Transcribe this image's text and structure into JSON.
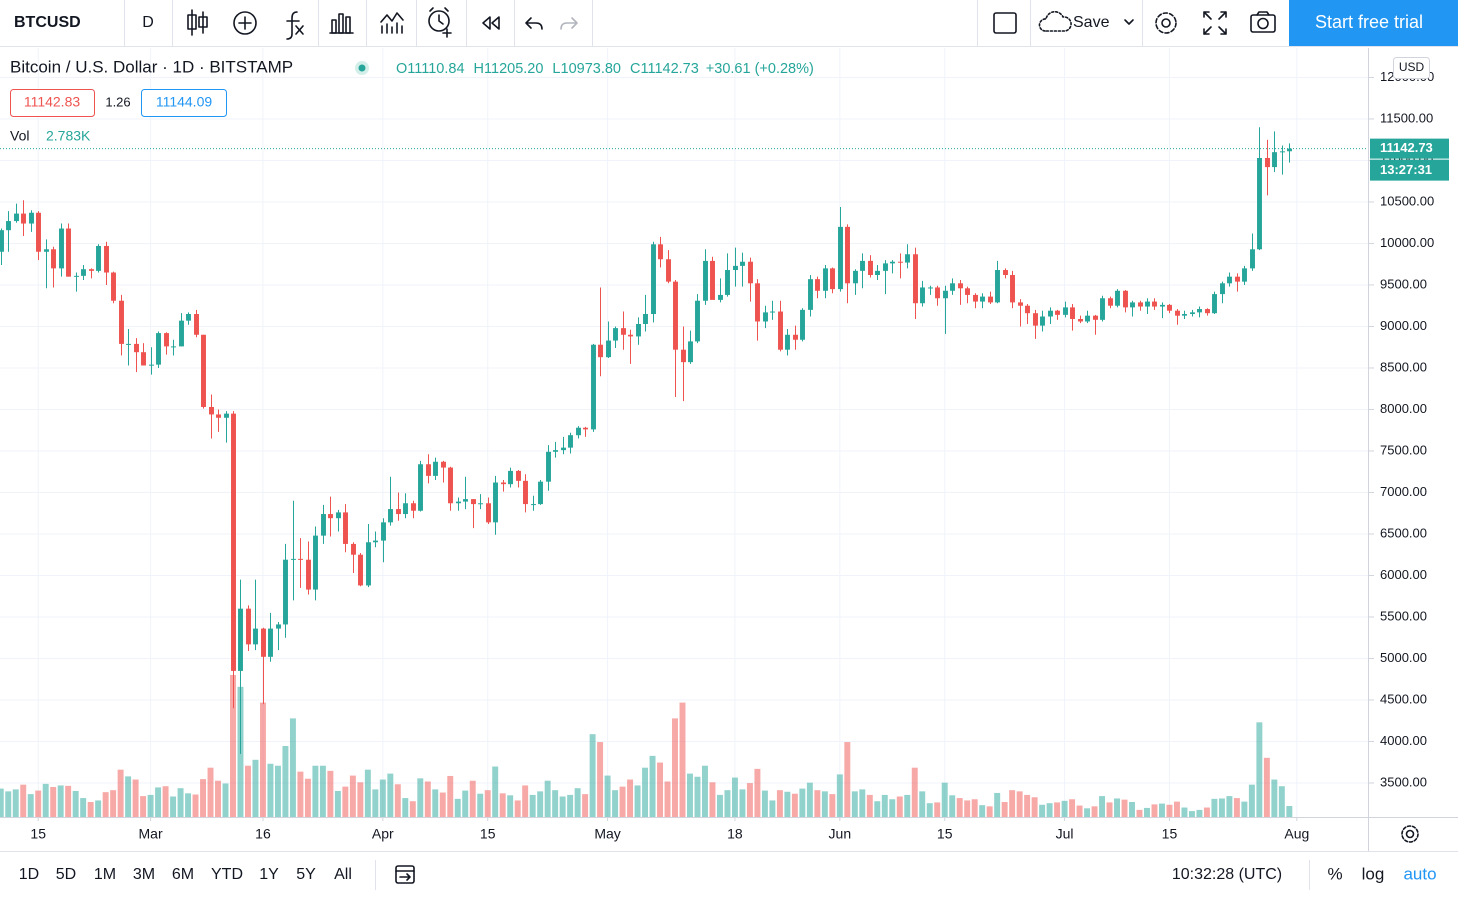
{
  "toolbar": {
    "symbol": "BTCUSD",
    "interval": "D",
    "save": "Save",
    "trial": "Start free trial"
  },
  "legend": {
    "symbol_name": "Bitcoin / U.S. Dollar · 1D · BITSTAMP",
    "ohlc": [
      {
        "label": "O",
        "value": "11110.84"
      },
      {
        "label": "H",
        "value": "11205.20"
      },
      {
        "label": "L",
        "value": "10973.80"
      },
      {
        "label": "C",
        "value": "11142.73"
      }
    ],
    "change": "+30.61 (+0.28%)",
    "bid": "11142.83",
    "spread": "1.26",
    "ask": "11144.09",
    "volume_name": "Vol",
    "volume_value": "2.783K"
  },
  "chart_data": {
    "type": "candlestick",
    "up_color": "#26a69a",
    "down_color": "#ef5350",
    "grid": true,
    "currency": "USD",
    "last_price": 11142.73,
    "countdown": "13:27:31",
    "xlim": [
      -0.1,
      182.5
    ],
    "xticks": [
      {
        "value": 5,
        "label": "15"
      },
      {
        "value": 20,
        "label": "Mar"
      },
      {
        "value": 35,
        "label": "16"
      },
      {
        "value": 51,
        "label": "Apr"
      },
      {
        "value": 65,
        "label": "15"
      },
      {
        "value": 81,
        "label": "May"
      },
      {
        "value": 98,
        "label": "18"
      },
      {
        "value": 112,
        "label": "Jun"
      },
      {
        "value": 126,
        "label": "15"
      },
      {
        "value": 142,
        "label": "Jul"
      },
      {
        "value": 156,
        "label": "15"
      },
      {
        "value": 173,
        "label": "Aug"
      }
    ],
    "ylim": [
      3090,
      12355
    ],
    "yticks": [
      {
        "value": 3500,
        "label": "3500.00"
      },
      {
        "value": 4000,
        "label": "4000.00"
      },
      {
        "value": 4500,
        "label": "4500.00"
      },
      {
        "value": 5000,
        "label": "5000.00"
      },
      {
        "value": 5500,
        "label": "5500.00"
      },
      {
        "value": 6000,
        "label": "6000.00"
      },
      {
        "value": 6500,
        "label": "6500.00"
      },
      {
        "value": 7000,
        "label": "7000.00"
      },
      {
        "value": 7500,
        "label": "7500.00"
      },
      {
        "value": 8000,
        "label": "8000.00"
      },
      {
        "value": 8500,
        "label": "8500.00"
      },
      {
        "value": 9000,
        "label": "9000.00"
      },
      {
        "value": 9500,
        "label": "9500.00"
      },
      {
        "value": 10000,
        "label": "10000.00"
      },
      {
        "value": 10500,
        "label": "10500.00"
      },
      {
        "value": 11000,
        "label": "11000.00"
      },
      {
        "value": 11500,
        "label": "11500.00"
      },
      {
        "value": 12000,
        "label": "12000.00"
      }
    ],
    "open": [
      9900,
      10160,
      10270,
      10360,
      10240,
      10370,
      9900,
      9930,
      9700,
      10180,
      9600,
      9610,
      9690,
      9670,
      9970,
      9650,
      9310,
      8790,
      8790,
      8690,
      8530,
      8540,
      8920,
      8760,
      8760,
      9070,
      9150,
      8900,
      8030,
      7940,
      7900,
      7950,
      4850,
      5600,
      5170,
      5360,
      5020,
      5360,
      5410,
      6190,
      6200,
      6190,
      5830,
      6480,
      6740,
      6690,
      6760,
      6380,
      6250,
      5880,
      6400,
      6420,
      6640,
      6800,
      6740,
      6870,
      6780,
      7340,
      7200,
      7370,
      7300,
      6870,
      6890,
      6920,
      6860,
      6870,
      6640,
      7120,
      7100,
      7260,
      7140,
      6860,
      6860,
      7130,
      7490,
      7510,
      7540,
      7690,
      7780,
      7760,
      8780,
      8630,
      8830,
      8980,
      8900,
      8880,
      9030,
      9150,
      9990,
      9810,
      9540,
      8720,
      8570,
      8820,
      9310,
      9790,
      9320,
      9380,
      9680,
      9730,
      9780,
      9520,
      9060,
      9170,
      9180,
      8720,
      8900,
      8840,
      9200,
      9570,
      9430,
      9700,
      9450,
      10200,
      9520,
      9670,
      9790,
      9620,
      9670,
      9760,
      9780,
      9770,
      9870,
      9280,
      9470,
      9470,
      9340,
      9430,
      9520,
      9460,
      9380,
      9300,
      9360,
      9290,
      9680,
      9620,
      9290,
      9250,
      9160,
      9010,
      9120,
      9190,
      9140,
      9230,
      9090,
      9060,
      9130,
      9080,
      9340,
      9250,
      9430,
      9230,
      9290,
      9240,
      9300,
      9240,
      9260,
      9190,
      9130,
      9150,
      9170,
      9210,
      9160,
      9390,
      9520,
      9600,
      9540,
      9700,
      9930,
      11030,
      10920,
      11100,
      11110.84
    ],
    "high": [
      10180,
      10390,
      10480,
      10520,
      10400,
      10390,
      10050,
      9960,
      10240,
      10240,
      9650,
      9740,
      9700,
      9990,
      10020,
      9660,
      9380,
      8970,
      8860,
      8800,
      8750,
      8940,
      8930,
      8840,
      9160,
      9170,
      9200,
      8900,
      8180,
      8000,
      7980,
      7980,
      5950,
      5640,
      5950,
      5370,
      5550,
      5440,
      6380,
      6900,
      6450,
      6410,
      6590,
      6850,
      6950,
      6790,
      6860,
      6400,
      6270,
      6620,
      6530,
      6690,
      7190,
      7000,
      6990,
      6900,
      7380,
      7460,
      7420,
      7380,
      7310,
      6940,
      7190,
      6920,
      6980,
      6940,
      7200,
      7150,
      7300,
      7270,
      7220,
      6960,
      7150,
      7570,
      7610,
      7670,
      7720,
      7800,
      7790,
      8790,
      9470,
      9060,
      9000,
      9180,
      8960,
      9110,
      9380,
      10020,
      10080,
      9920,
      9560,
      9000,
      8950,
      9390,
      9930,
      9840,
      9580,
      9880,
      9950,
      9890,
      9830,
      9570,
      9250,
      9310,
      9310,
      8970,
      9010,
      9220,
      9620,
      9600,
      9740,
      9710,
      10440,
      10230,
      9690,
      9880,
      9860,
      9740,
      9800,
      9800,
      9880,
      9990,
      9950,
      9550,
      9490,
      9490,
      9490,
      9580,
      9560,
      9480,
      9400,
      9400,
      9420,
      9790,
      9700,
      9670,
      9330,
      9270,
      9200,
      9190,
      9230,
      9200,
      9300,
      9270,
      9130,
      9190,
      9140,
      9370,
      9360,
      9450,
      9440,
      9310,
      9310,
      9340,
      9340,
      9290,
      9270,
      9210,
      9190,
      9200,
      9240,
      9220,
      9420,
      9540,
      9650,
      9640,
      9730,
      10120,
      11400,
      11250,
      11350,
      11180,
      11205.2
    ],
    "low": [
      9740,
      9900,
      10250,
      10090,
      10140,
      9800,
      9460,
      9470,
      9600,
      9600,
      9420,
      9560,
      9580,
      9650,
      9500,
      9280,
      8650,
      8530,
      8450,
      8530,
      8420,
      8500,
      8660,
      8650,
      8760,
      9020,
      8870,
      8010,
      7650,
      7730,
      7600,
      4400,
      3850,
      5090,
      5100,
      4450,
      4960,
      5100,
      5250,
      5700,
      5850,
      5770,
      5700,
      6380,
      6470,
      6530,
      6280,
      6030,
      5870,
      5860,
      6340,
      6160,
      6600,
      6660,
      6690,
      6690,
      6770,
      7110,
      7150,
      7120,
      6780,
      6780,
      6800,
      6570,
      6800,
      6620,
      6490,
      7010,
      7060,
      7060,
      6760,
      6780,
      6850,
      7020,
      7420,
      7460,
      7470,
      7650,
      7670,
      7730,
      8400,
      8620,
      8740,
      8720,
      8550,
      8780,
      8940,
      9050,
      9710,
      9520,
      8150,
      8100,
      8550,
      8800,
      9260,
      9340,
      9290,
      9360,
      9480,
      9480,
      9300,
      8830,
      8980,
      9080,
      8700,
      8650,
      8720,
      8820,
      9120,
      9340,
      9340,
      9400,
      9420,
      9280,
      9380,
      9460,
      9590,
      9560,
      9390,
      9640,
      9580,
      9700,
      9090,
      9240,
      9380,
      9250,
      8910,
      9380,
      9260,
      9280,
      9220,
      9220,
      9270,
      9280,
      9580,
      9220,
      9000,
      9030,
      8850,
      8940,
      9030,
      9080,
      9110,
      8950,
      9040,
      9040,
      8900,
      9060,
      9220,
      9230,
      9170,
      9120,
      9190,
      9150,
      9200,
      9100,
      9160,
      9020,
      9090,
      9120,
      9110,
      9130,
      9150,
      9280,
      9480,
      9420,
      9500,
      9670,
      9920,
      10580,
      10860,
      10830,
      10973.8
    ],
    "close": [
      10160,
      10270,
      10360,
      10240,
      10370,
      9900,
      9930,
      9700,
      10180,
      9600,
      9610,
      9690,
      9670,
      9970,
      9650,
      9310,
      8790,
      8790,
      8690,
      8530,
      8540,
      8920,
      8760,
      8760,
      9070,
      9150,
      8900,
      8030,
      7940,
      7900,
      7950,
      4850,
      5600,
      5170,
      5360,
      5020,
      5360,
      5410,
      6190,
      6200,
      6190,
      5830,
      6480,
      6740,
      6690,
      6760,
      6380,
      6250,
      5880,
      6400,
      6420,
      6640,
      6800,
      6740,
      6870,
      6780,
      7340,
      7200,
      7370,
      7300,
      6870,
      6890,
      6920,
      6860,
      6870,
      6640,
      7120,
      7100,
      7260,
      7140,
      6860,
      6860,
      7130,
      7490,
      7510,
      7540,
      7690,
      7780,
      7760,
      8780,
      8630,
      8830,
      8980,
      8900,
      8880,
      9030,
      9150,
      9990,
      9810,
      9540,
      8720,
      8570,
      8820,
      9310,
      9790,
      9320,
      9380,
      9680,
      9730,
      9780,
      9520,
      9060,
      9170,
      9180,
      8720,
      8900,
      8840,
      9200,
      9570,
      9430,
      9700,
      9450,
      10200,
      9520,
      9670,
      9790,
      9620,
      9670,
      9760,
      9780,
      9770,
      9870,
      9280,
      9470,
      9470,
      9340,
      9430,
      9520,
      9460,
      9380,
      9300,
      9360,
      9290,
      9680,
      9620,
      9290,
      9250,
      9160,
      9010,
      9120,
      9190,
      9140,
      9230,
      9090,
      9060,
      9130,
      9080,
      9340,
      9250,
      9430,
      9230,
      9290,
      9240,
      9300,
      9240,
      9260,
      9190,
      9130,
      9150,
      9170,
      9210,
      9160,
      9390,
      9520,
      9600,
      9540,
      9700,
      9930,
      11030,
      10920,
      11100,
      11110,
      11142.73
    ],
    "volume": [
      7200,
      6500,
      7000,
      8200,
      5800,
      6700,
      8400,
      7600,
      8000,
      7900,
      6600,
      4800,
      3800,
      4200,
      6300,
      6800,
      12000,
      10300,
      9500,
      5300,
      5600,
      7500,
      7800,
      5200,
      7300,
      6000,
      5700,
      9600,
      12500,
      9200,
      8500,
      36000,
      33000,
      13000,
      14500,
      29000,
      13500,
      13000,
      18000,
      25000,
      11500,
      9700,
      13000,
      13000,
      11700,
      6600,
      7700,
      10500,
      8800,
      12000,
      7000,
      9500,
      11000,
      8300,
      4800,
      4000,
      9800,
      9000,
      7000,
      6200,
      10400,
      4600,
      6700,
      9200,
      5900,
      6800,
      12800,
      6000,
      5500,
      4200,
      8000,
      5600,
      6500,
      9200,
      6800,
      5200,
      5600,
      7300,
      5800,
      21000,
      19000,
      10500,
      6800,
      7700,
      9500,
      8000,
      12500,
      15500,
      13800,
      9000,
      25000,
      29000,
      11000,
      10200,
      13000,
      8800,
      5600,
      6800,
      10000,
      7000,
      8600,
      12200,
      6700,
      4200,
      6800,
      6400,
      5900,
      7200,
      8700,
      6800,
      6500,
      5800,
      10800,
      19000,
      6500,
      7000,
      5600,
      4000,
      5600,
      4500,
      5200,
      5600,
      12500,
      6500,
      3500,
      3700,
      8700,
      5500,
      4800,
      4200,
      4500,
      3000,
      2700,
      6100,
      3800,
      6800,
      6500,
      5600,
      5000,
      3100,
      3500,
      3700,
      4100,
      4500,
      2900,
      2200,
      2700,
      5300,
      3700,
      4700,
      4400,
      3800,
      1800,
      2300,
      3200,
      3400,
      3100,
      3900,
      2400,
      1500,
      1800,
      2400,
      4600,
      4700,
      5300,
      4800,
      3900,
      8200,
      24000,
      15000,
      9500,
      7800,
      2783
    ]
  },
  "bottom_bar": {
    "ranges": [
      "1D",
      "5D",
      "1M",
      "3M",
      "6M",
      "YTD",
      "1Y",
      "5Y",
      "All"
    ],
    "time": "10:32:28 (UTC)",
    "percent": "%",
    "log": "log",
    "auto": "auto"
  }
}
